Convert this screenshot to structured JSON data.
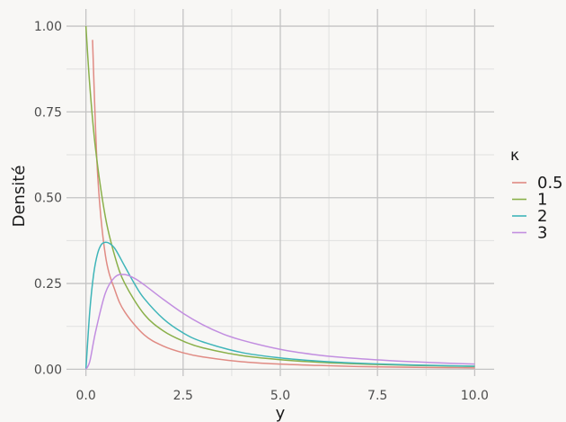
{
  "chart_data": {
    "type": "line",
    "title": "",
    "xlabel": "y",
    "ylabel": "Densité",
    "xlim": [
      -0.5,
      10.5
    ],
    "ylim": [
      -0.02,
      1.05
    ],
    "x_ticks": [
      0,
      2.5,
      5,
      7.5,
      10
    ],
    "x_tick_labels": [
      "0.0",
      "2.5",
      "5.0",
      "7.5",
      "10.0"
    ],
    "y_ticks": [
      0,
      0.25,
      0.5,
      0.75,
      1
    ],
    "y_tick_labels": [
      "0.00",
      "0.25",
      "0.50",
      "0.75",
      "1.00"
    ],
    "grid": true,
    "legend": {
      "title": "κ",
      "position": "right"
    },
    "series": [
      {
        "name": "0.5",
        "color": "#e08b84",
        "x": [
          0.17,
          0.3,
          0.5,
          0.75,
          1,
          1.5,
          2,
          2.5,
          3,
          4,
          5,
          6,
          7,
          8,
          9,
          10
        ],
        "values": [
          0.96,
          0.57,
          0.333,
          0.229,
          0.167,
          0.1,
          0.067,
          0.048,
          0.036,
          0.022,
          0.015,
          0.011,
          0.008,
          0.0062,
          0.005,
          0.004
        ]
      },
      {
        "name": "1",
        "color": "#8ab04a",
        "x": [
          0,
          0.1,
          0.25,
          0.5,
          0.75,
          1,
          1.5,
          2,
          2.5,
          3,
          4,
          5,
          6,
          7,
          8,
          9,
          10
        ],
        "values": [
          1,
          0.826,
          0.64,
          0.444,
          0.327,
          0.25,
          0.16,
          0.111,
          0.082,
          0.0625,
          0.04,
          0.028,
          0.0204,
          0.0156,
          0.0123,
          0.01,
          0.0083
        ]
      },
      {
        "name": "2",
        "color": "#3fb5b9",
        "x": [
          0,
          0.1,
          0.2,
          0.3,
          0.4,
          0.5,
          0.6,
          0.75,
          1,
          1.25,
          1.5,
          2,
          2.5,
          3,
          4,
          5,
          6,
          7,
          8,
          9,
          10
        ],
        "values": [
          0,
          0.17,
          0.278,
          0.337,
          0.364,
          0.37,
          0.367,
          0.351,
          0.3,
          0.249,
          0.206,
          0.146,
          0.106,
          0.08,
          0.049,
          0.033,
          0.0235,
          0.0177,
          0.0137,
          0.011,
          0.009
        ]
      },
      {
        "name": "3",
        "color": "#c28ee0",
        "x": [
          0,
          0.1,
          0.25,
          0.5,
          0.75,
          1,
          1.25,
          1.5,
          2,
          2.5,
          3,
          3.5,
          4,
          5,
          6,
          7,
          8,
          9,
          10
        ],
        "values": [
          0,
          0.023,
          0.11,
          0.222,
          0.269,
          0.276,
          0.265,
          0.246,
          0.203,
          0.163,
          0.13,
          0.104,
          0.085,
          0.058,
          0.041,
          0.031,
          0.024,
          0.019,
          0.015
        ]
      }
    ]
  }
}
